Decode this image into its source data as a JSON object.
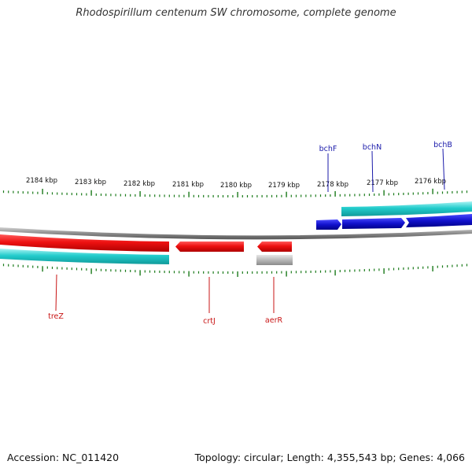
{
  "title": "Rhodospirillum centenum SW chromosome, complete genome",
  "accession_text": "Accession: NC_011420",
  "stats_text": "Topology: circular; Length: 4,355,543 bp; Genes: 4,066",
  "colors": {
    "backbone": "#8c8c8c",
    "ticks": "#1a7a1a",
    "red_feature": "#ee1111",
    "cyan_feature": "#22cccc",
    "blue_feature": "#1111cc",
    "gray_feature": "#b8b8b8",
    "blue_label": "#1a1aaa",
    "red_label": "#c81414"
  },
  "kbp_labels": [
    "2184 kbp",
    "2183 kbp",
    "2182 kbp",
    "2181 kbp",
    "2180 kbp",
    "2179 kbp",
    "2178 kbp",
    "2177 kbp",
    "2176 kbp"
  ],
  "forward_gene_labels": [
    "bchF",
    "bchN",
    "bchB"
  ],
  "reverse_gene_labels": [
    "treZ",
    "crtJ",
    "aerR"
  ]
}
